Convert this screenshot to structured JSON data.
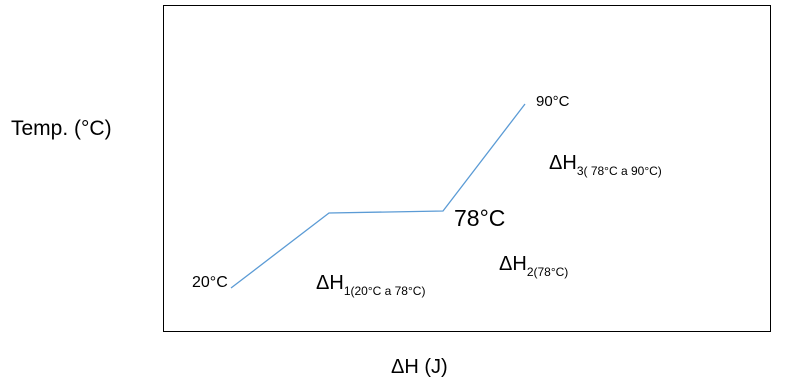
{
  "diagram": {
    "y_axis_label": "Temp. (°C)",
    "x_axis_label": "ΔH   (J)",
    "point_labels": {
      "start": "20°C",
      "plateau": "78°C",
      "end": "90°C"
    },
    "stages": [
      {
        "symbol": "ΔH",
        "subscript": "1(20°C a 78°C)"
      },
      {
        "symbol": "ΔH",
        "subscript": "2(78°C)"
      },
      {
        "symbol": "ΔH",
        "subscript": "3( 78°C a 90°C)"
      }
    ],
    "line_color": "#5b9bd5"
  }
}
